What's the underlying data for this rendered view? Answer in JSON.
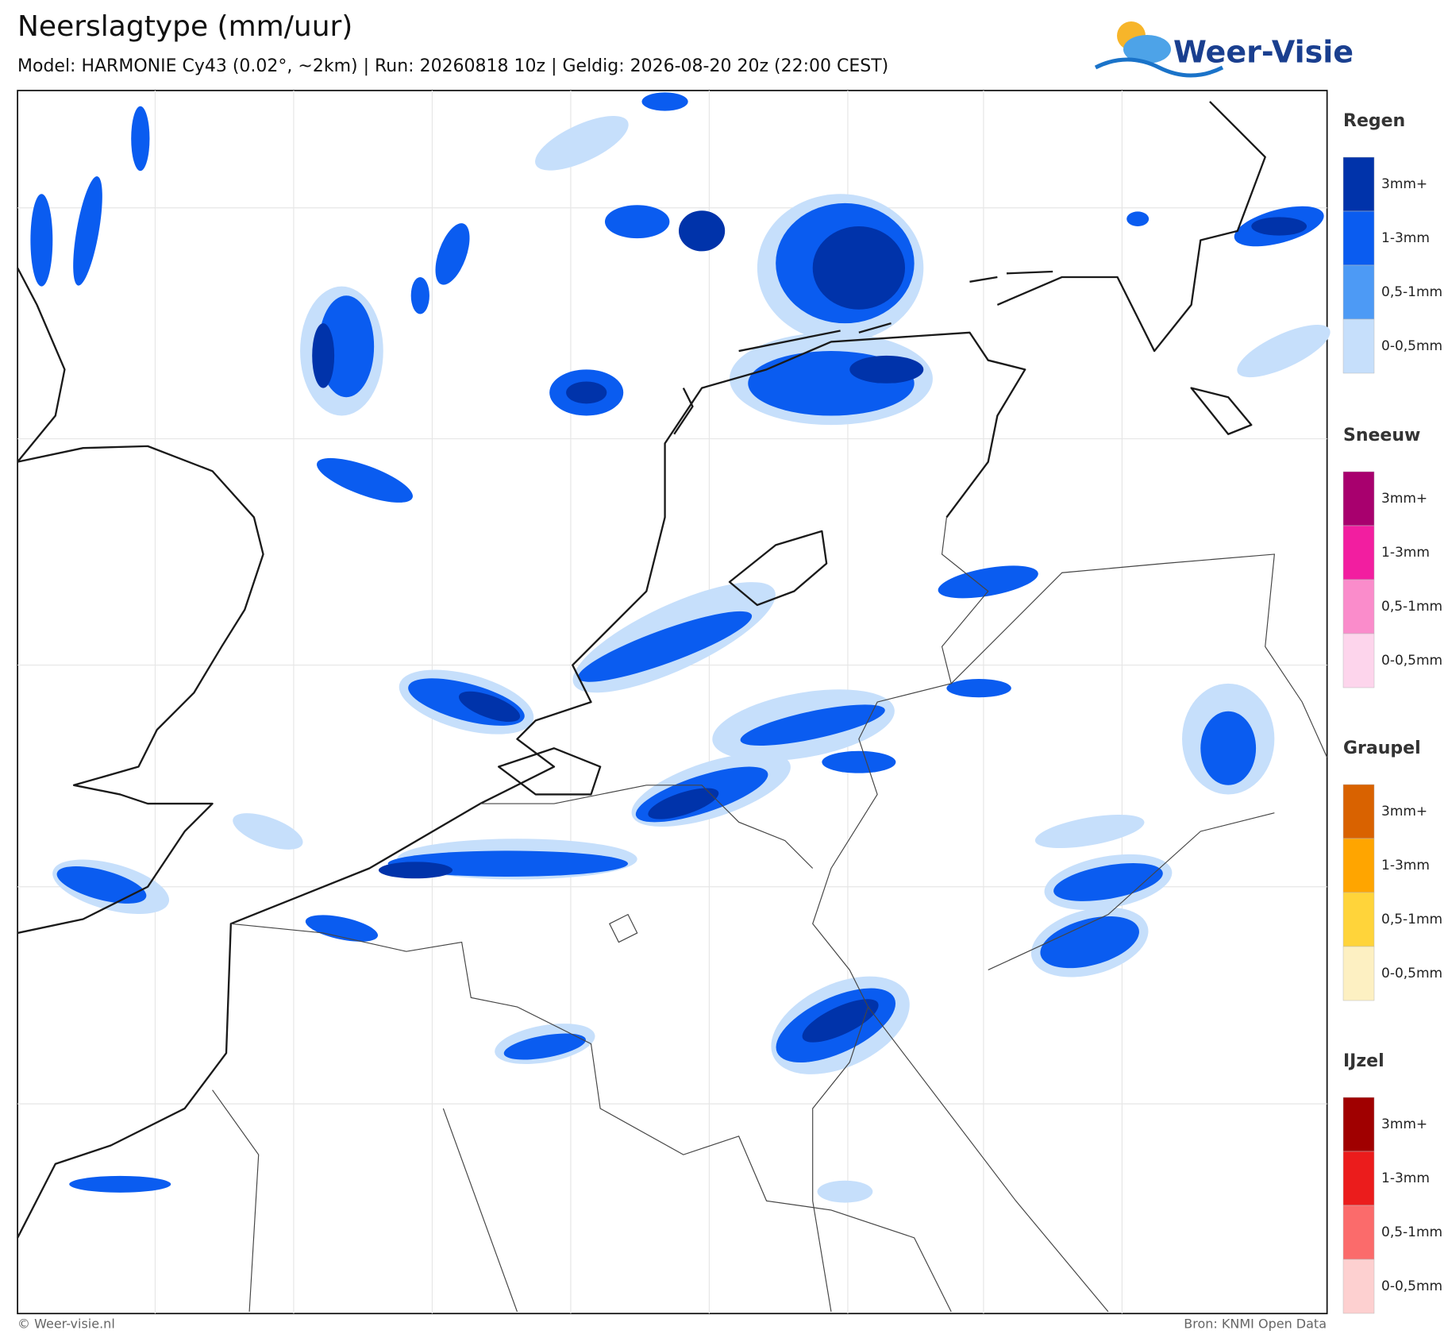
{
  "header": {
    "title": "Neerslagtype (mm/uur)",
    "subtitle": "Model: HARMONIE Cy43 (0.02°, ~2km)  |  Run: 20260818 10z  |  Geldig: 2026-08-20 20z (22:00 CEST)",
    "logo": "Weer-Visie"
  },
  "legend": [
    {
      "name": "Regen",
      "items": [
        {
          "label": "3mm+",
          "color": "#0033aa"
        },
        {
          "label": "1-3mm",
          "color": "#0a5cf0"
        },
        {
          "label": "0,5-1mm",
          "color": "#4d9af5"
        },
        {
          "label": "0-0,5mm",
          "color": "#c6dffb"
        }
      ]
    },
    {
      "name": "Sneeuw",
      "items": [
        {
          "label": "3mm+",
          "color": "#a8006e"
        },
        {
          "label": "1-3mm",
          "color": "#f21ea0"
        },
        {
          "label": "0,5-1mm",
          "color": "#fa8ccb"
        },
        {
          "label": "0-0,5mm",
          "color": "#fdd5ec"
        }
      ]
    },
    {
      "name": "Graupel",
      "items": [
        {
          "label": "3mm+",
          "color": "#d96200"
        },
        {
          "label": "1-3mm",
          "color": "#ffa500"
        },
        {
          "label": "0,5-1mm",
          "color": "#ffd43a"
        },
        {
          "label": "0-0,5mm",
          "color": "#fdf0c2"
        }
      ]
    },
    {
      "name": "IJzel",
      "items": [
        {
          "label": "3mm+",
          "color": "#a00000"
        },
        {
          "label": "1-3mm",
          "color": "#eb1c1c"
        },
        {
          "label": "0,5-1mm",
          "color": "#fb6b6b"
        },
        {
          "label": "0-0,5mm",
          "color": "#fdd0d0"
        }
      ]
    }
  ],
  "footer": {
    "left": "© Weer-visie.nl",
    "right": "Bron: KNMI Open Data"
  }
}
